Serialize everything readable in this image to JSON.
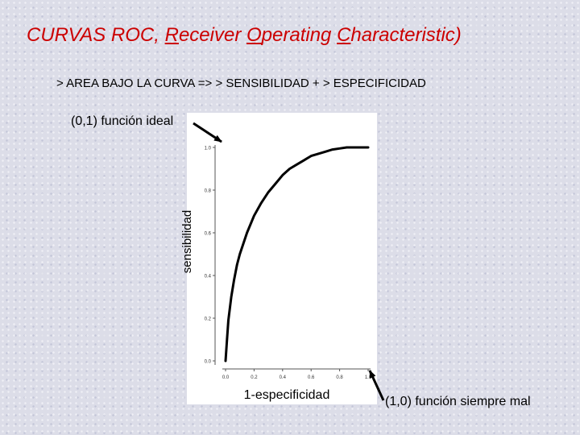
{
  "slide": {
    "title_parts": [
      {
        "text": "CURVAS ROC, ",
        "u": false
      },
      {
        "text": "R",
        "u": true
      },
      {
        "text": "eceiver ",
        "u": false
      },
      {
        "text": "O",
        "u": true
      },
      {
        "text": "perating ",
        "u": false
      },
      {
        "text": "C",
        "u": true
      },
      {
        "text": "haracteristic)",
        "u": false
      }
    ],
    "subtitle": "> AREA BAJO LA CURVA  =>  > SENSIBILIDAD + > ESPECIFICIDAD",
    "annotation_ideal": "(0,1) función ideal",
    "annotation_bad": "(1,0) función siempre mal"
  },
  "colors": {
    "title": "#cc0000",
    "curve": "#000000",
    "axis": "#555555"
  },
  "chart_data": {
    "type": "line",
    "xlabel": "1-especificidad",
    "ylabel": "sensibilidad",
    "xlim": [
      0,
      1
    ],
    "ylim": [
      0,
      1
    ],
    "x_ticks": [
      "0.0",
      "0.2",
      "0.4",
      "0.6",
      "0.8",
      "1.0"
    ],
    "y_ticks": [
      "0.0",
      "0.2",
      "0.4",
      "0.6",
      "0.8",
      "1.0"
    ],
    "grid": false,
    "series": [
      {
        "x": [
          0.0,
          0.01,
          0.02,
          0.04,
          0.06,
          0.08,
          0.1,
          0.15,
          0.2,
          0.25,
          0.3,
          0.35,
          0.4,
          0.45,
          0.5,
          0.55,
          0.6,
          0.65,
          0.7,
          0.75,
          0.8,
          0.85,
          0.9,
          0.95,
          1.0
        ],
        "y": [
          0.0,
          0.1,
          0.19,
          0.3,
          0.38,
          0.45,
          0.5,
          0.6,
          0.68,
          0.74,
          0.79,
          0.83,
          0.87,
          0.9,
          0.92,
          0.94,
          0.96,
          0.97,
          0.98,
          0.99,
          0.995,
          1.0,
          1.0,
          1.0,
          1.0
        ]
      }
    ]
  }
}
